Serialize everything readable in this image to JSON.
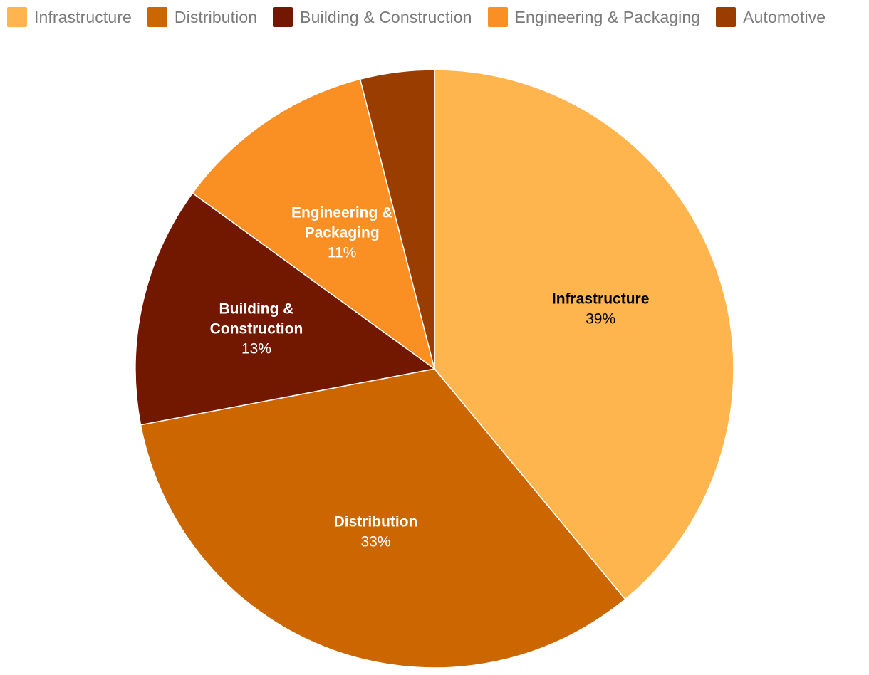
{
  "chart_data": {
    "type": "pie",
    "categories": [
      "Infrastructure",
      "Distribution",
      "Building & Construction",
      "Engineering & Packaging",
      "Automotive"
    ],
    "values": [
      39,
      33,
      13,
      11,
      4
    ],
    "colors": [
      "#FFB54D",
      "#CC6600",
      "#731800",
      "#FA8F24",
      "#993D00"
    ],
    "label_colors": [
      "#000000",
      "#ffffff",
      "#ffffff",
      "#ffffff",
      "#ffffff"
    ],
    "data_labels": [
      {
        "lines": [
          "Infrastructure"
        ],
        "pct": "39%"
      },
      {
        "lines": [
          "Distribution"
        ],
        "pct": "33%"
      },
      {
        "lines": [
          "Building &",
          "Construction"
        ],
        "pct": "13%"
      },
      {
        "lines": [
          "Engineering &",
          "Packaging"
        ],
        "pct": "11%"
      },
      null
    ],
    "legend": {
      "position": "top-left",
      "items": [
        "Infrastructure",
        "Distribution",
        "Building & Construction",
        "Engineering & Packaging",
        "Automotive"
      ]
    },
    "start_angle": "12 o'clock",
    "direction": "clockwise"
  }
}
